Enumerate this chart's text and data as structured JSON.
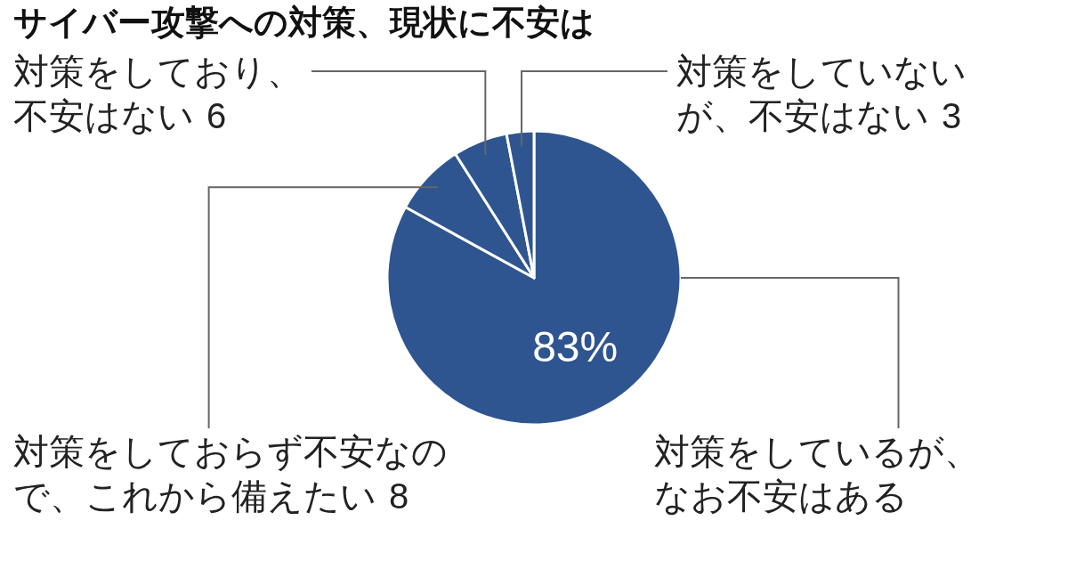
{
  "chart_data": {
    "type": "pie",
    "title": "サイバー攻撃への対策、現状に不安は",
    "categories": [
      "対策をしているが、なお不安はある",
      "対策をしておらず不安なので、これから備えたい",
      "対策をしており、不安はない",
      "対策をしていないが、不安はない"
    ],
    "values": [
      83,
      8,
      6,
      3
    ],
    "value_labels": [
      "83%",
      "8",
      "6",
      "3"
    ],
    "colors": [
      "#2e5590",
      "#2e5590",
      "#2e5590",
      "#2e5590"
    ]
  }
}
